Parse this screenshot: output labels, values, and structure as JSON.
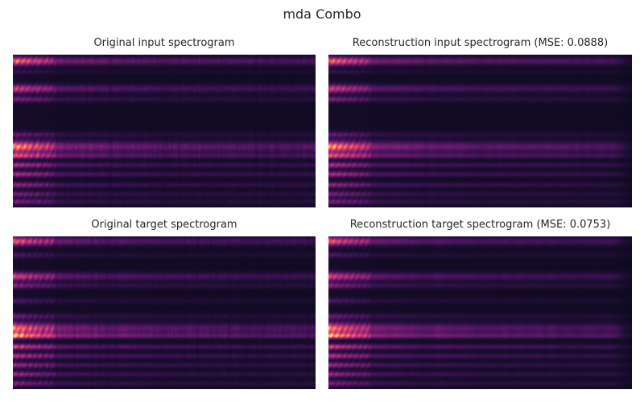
{
  "figure": {
    "title": "mda Combo"
  },
  "panels": [
    {
      "id": "orig-input",
      "title": "Original input spectrogram"
    },
    {
      "id": "recon-input",
      "title": "Reconstruction input spectrogram (MSE: 0.0888)"
    },
    {
      "id": "orig-target",
      "title": "Original target spectrogram"
    },
    {
      "id": "recon-target",
      "title": "Reconstruction target spectrogram (MSE: 0.0753)"
    }
  ],
  "chart_data": [
    {
      "type": "heatmap",
      "title": "Original input spectrogram",
      "colormap": "magma-like",
      "axes_visible": false,
      "grid": false
    },
    {
      "type": "heatmap",
      "title": "Reconstruction input spectrogram (MSE: 0.0888)",
      "mse": 0.0888,
      "colormap": "magma-like",
      "axes_visible": false,
      "grid": false
    },
    {
      "type": "heatmap",
      "title": "Original target spectrogram",
      "colormap": "magma-like",
      "axes_visible": false,
      "grid": false
    },
    {
      "type": "heatmap",
      "title": "Reconstruction target spectrogram (MSE: 0.0753)",
      "mse": 0.0753,
      "colormap": "magma-like",
      "axes_visible": false,
      "grid": false
    }
  ]
}
